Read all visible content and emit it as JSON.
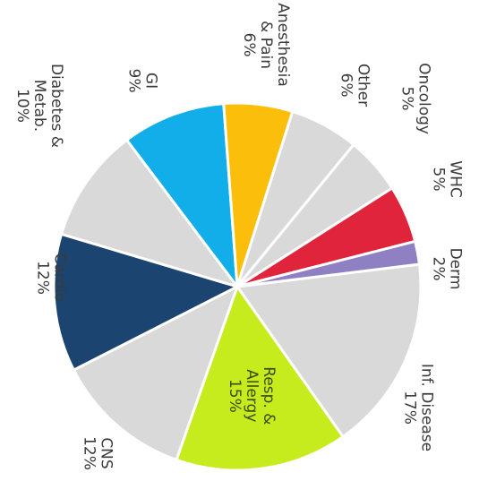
{
  "chart_data": {
    "type": "pie",
    "slices": [
      {
        "label": "Inf. Disease",
        "value": 17,
        "value_label": "17%",
        "color": "#d9d9d9"
      },
      {
        "label": "Resp. & Allergy",
        "value": 15,
        "value_label": "15%",
        "color": "#c6ec1d"
      },
      {
        "label": "CNS",
        "value": 12,
        "value_label": "12%",
        "color": "#d9d9d9"
      },
      {
        "label": "Cardio",
        "value": 12,
        "value_label": "12%",
        "color": "#1c4470"
      },
      {
        "label": "Diabetes & Metab.",
        "value": 10,
        "value_label": "10%",
        "color": "#d9d9d9"
      },
      {
        "label": "GI",
        "value": 9,
        "value_label": "9%",
        "color": "#11aeea"
      },
      {
        "label": "Anesthesia & Pain",
        "value": 6,
        "value_label": "6%",
        "color": "#fbbe0b"
      },
      {
        "label": "Other",
        "value": 6,
        "value_label": "6%",
        "color": "#d9d9d9"
      },
      {
        "label": "Oncology",
        "value": 5,
        "value_label": "5%",
        "color": "#d9d9d9"
      },
      {
        "label": "WHC",
        "value": 5,
        "value_label": "5%",
        "color": "#e0243c"
      },
      {
        "label": "Derm",
        "value": 2,
        "value_label": "2%",
        "color": "#8f7fc3"
      }
    ],
    "label_lines": {
      "Inf. Disease": [
        "Inf. Disease",
        "17%"
      ],
      "Resp. & Allergy": [
        "Resp. &",
        "Allergy",
        "15%"
      ],
      "CNS": [
        "CNS",
        "12%"
      ],
      "Cardio": [
        "Cardio",
        "12%"
      ],
      "Diabetes & Metab.": [
        "Diabetes &",
        "Metab.",
        "10%"
      ],
      "GI": [
        "GI",
        "9%"
      ],
      "Anesthesia & Pain": [
        "Anesthesia",
        "& Pain",
        "6%"
      ],
      "Other": [
        "Other",
        "6%"
      ],
      "Oncology": [
        "Oncology",
        "5%"
      ],
      "WHC": [
        "WHC",
        "5%"
      ],
      "Derm": [
        "Derm",
        "2%"
      ]
    },
    "orientation": "rotated 90 degrees clockwise"
  }
}
